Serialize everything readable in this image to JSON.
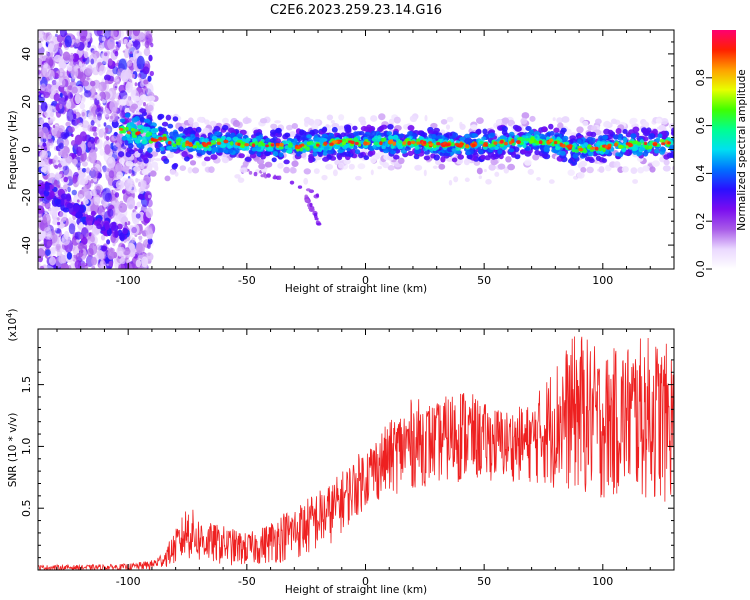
{
  "title": "C2E6.2023.259.23.14.G16",
  "chart_data": [
    {
      "type": "heatmap",
      "xlabel": "Height of straight line (km)",
      "ylabel": "Frequency (Hz)",
      "xlim": [
        -138,
        130
      ],
      "ylim": [
        -50,
        50
      ],
      "xticks": [
        -100,
        -50,
        0,
        50,
        100
      ],
      "yticks": [
        -40,
        -20,
        0,
        20,
        40
      ],
      "colorbar": {
        "label": "Normalized spectral amplitude",
        "range": [
          0.0,
          1.0
        ],
        "ticks": [
          0.0,
          0.2,
          0.4,
          0.6,
          0.8
        ],
        "colors": [
          "#ffffff",
          "#ead8ff",
          "#a85ae8",
          "#7a0df0",
          "#2a10ff",
          "#0070ff",
          "#00e0f0",
          "#00ff90",
          "#40ff00",
          "#e8ff00",
          "#ffa000",
          "#ff2000",
          "#ff0070"
        ]
      },
      "ridge": {
        "description_points_x": [
          -100,
          -90,
          -80,
          -70,
          -60,
          -50,
          -40,
          -30,
          -20,
          -10,
          0,
          10,
          20,
          30,
          40,
          50,
          60,
          70,
          80,
          90,
          100,
          110,
          120,
          130
        ],
        "frequency": [
          8,
          5,
          3,
          2,
          3,
          2,
          2,
          1,
          2,
          3,
          3,
          3,
          3,
          2,
          2,
          2,
          3,
          4,
          3,
          0,
          1,
          2,
          2,
          3
        ]
      },
      "branch": {
        "x": [
          -138,
          -130,
          -120,
          -110,
          -100
        ],
        "frequency": [
          -15,
          -20,
          -26,
          -32,
          -36
        ]
      },
      "trails": [
        {
          "x": [
            -55,
            -45,
            -35,
            -30,
            -25,
            -20
          ],
          "frequency": [
            -8,
            -10,
            -12,
            -14,
            -16,
            -20
          ]
        },
        {
          "x": [
            -25,
            -22,
            -19
          ],
          "frequency": [
            -20,
            -26,
            -32
          ]
        }
      ]
    },
    {
      "type": "line",
      "xlabel": "Height of straight line (km)",
      "ylabel": "SNR (10 * v/v)",
      "scale_label": "(x10",
      "scale_exp": "4",
      "xlim": [
        -138,
        130
      ],
      "ylim": [
        0,
        1.95
      ],
      "xticks": [
        -100,
        -50,
        0,
        50,
        100
      ],
      "yticks": [
        0.5,
        1.0,
        1.5
      ],
      "ytick_labels": [
        "0.5",
        "1.0",
        "1.5"
      ],
      "series": [
        {
          "name": "SNR",
          "color": "#ee2020",
          "envelope_x": [
            -138,
            -120,
            -100,
            -90,
            -85,
            -78,
            -75,
            -70,
            -65,
            -60,
            -55,
            -50,
            -45,
            -40,
            -35,
            -30,
            -25,
            -20,
            -15,
            -10,
            -5,
            0,
            5,
            10,
            20,
            30,
            40,
            50,
            60,
            70,
            80,
            90,
            100,
            110,
            120,
            130
          ],
          "low": [
            0.0,
            0.0,
            0.0,
            0.0,
            0.02,
            0.05,
            0.08,
            0.05,
            0.05,
            0.04,
            0.03,
            0.03,
            0.04,
            0.05,
            0.06,
            0.08,
            0.1,
            0.15,
            0.2,
            0.3,
            0.4,
            0.5,
            0.55,
            0.6,
            0.65,
            0.7,
            0.7,
            0.72,
            0.72,
            0.7,
            0.65,
            0.6,
            0.55,
            0.6,
            0.55,
            0.5
          ],
          "high": [
            0.04,
            0.04,
            0.05,
            0.08,
            0.15,
            0.4,
            0.55,
            0.42,
            0.38,
            0.36,
            0.33,
            0.3,
            0.33,
            0.4,
            0.47,
            0.52,
            0.58,
            0.65,
            0.7,
            0.8,
            0.9,
            1.0,
            1.1,
            1.2,
            1.4,
            1.35,
            1.5,
            1.35,
            1.3,
            1.35,
            1.7,
            1.95,
            1.75,
            1.85,
            1.9,
            1.8
          ]
        }
      ]
    }
  ]
}
